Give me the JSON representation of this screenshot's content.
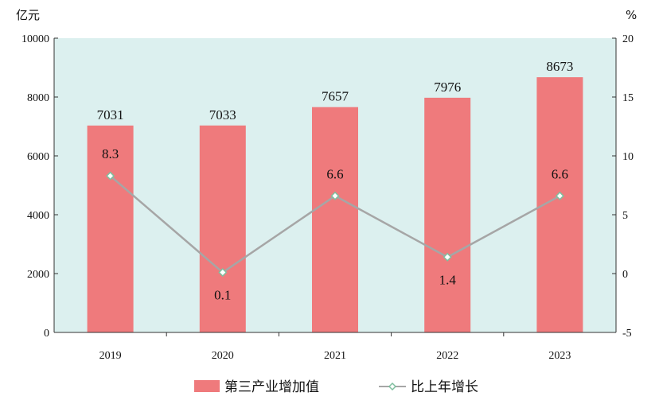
{
  "chart_data": {
    "type": "bar",
    "categories": [
      "2019",
      "2020",
      "2021",
      "2022",
      "2023"
    ],
    "series": [
      {
        "name": "第三产业增加值",
        "type": "bar",
        "axis": "left",
        "values": [
          7031,
          7033,
          7657,
          7976,
          8673
        ],
        "labels": [
          "7031",
          "7033",
          "7657",
          "7976",
          "8673"
        ],
        "color": "#ef7a7c"
      },
      {
        "name": "比上年增长",
        "type": "line",
        "axis": "right",
        "values": [
          8.3,
          0.1,
          6.6,
          1.4,
          6.6
        ],
        "labels": [
          "8.3",
          "0.1",
          "6.6",
          "1.4",
          "6.6"
        ],
        "color": "#a6a6a6",
        "marker_color": "#7fbf9f"
      }
    ],
    "ylabel_left": "亿元",
    "ylabel_right": "%",
    "ylim_left": [
      0,
      10000
    ],
    "ylim_right": [
      -5,
      20
    ],
    "yticks_left": [
      "0",
      "2000",
      "4000",
      "6000",
      "8000",
      "10000"
    ],
    "yticks_right": [
      "-5",
      "0",
      "5",
      "10",
      "15",
      "20"
    ],
    "plot_background": "#dcf0ef",
    "grid": false,
    "legend_position": "bottom"
  }
}
